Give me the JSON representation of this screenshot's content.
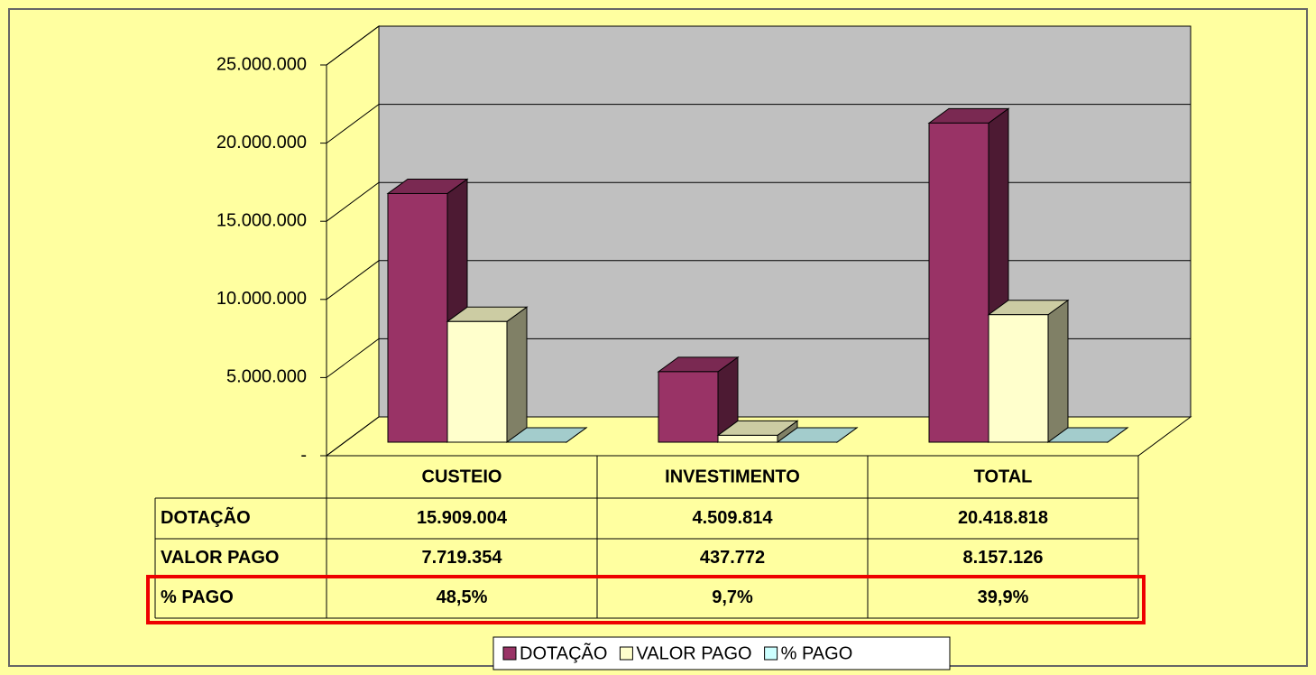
{
  "chart_data": {
    "type": "bar3d",
    "categories": [
      "CUSTEIO",
      "INVESTIMENTO",
      "TOTAL"
    ],
    "series": [
      {
        "name": "DOTAÇÃO",
        "color": "#993366",
        "values": [
          15909004,
          4509814,
          20418818
        ],
        "value_labels": [
          "15.909.004",
          "4.509.814",
          "20.418.818"
        ]
      },
      {
        "name": "VALOR PAGO",
        "color": "#ffffcc",
        "values": [
          7719354,
          437772,
          8157126
        ],
        "value_labels": [
          "7.719.354",
          "437.772",
          "8.157.126"
        ]
      },
      {
        "name": "% PAGO",
        "color": "#ccffff",
        "values": [
          48.5,
          9.7,
          39.9
        ],
        "value_labels": [
          "48,5%",
          "9,7%",
          "39,9%"
        ]
      }
    ],
    "ylim": [
      0,
      25000000
    ],
    "yticks": [
      {
        "value": 0,
        "label": "-"
      },
      {
        "value": 5000000,
        "label": "5.000.000"
      },
      {
        "value": 10000000,
        "label": "10.000.000"
      },
      {
        "value": 15000000,
        "label": "15.000.000"
      },
      {
        "value": 20000000,
        "label": "20.000.000"
      },
      {
        "value": 25000000,
        "label": "25.000.000"
      }
    ],
    "grid": true,
    "legend": "bottom"
  }
}
